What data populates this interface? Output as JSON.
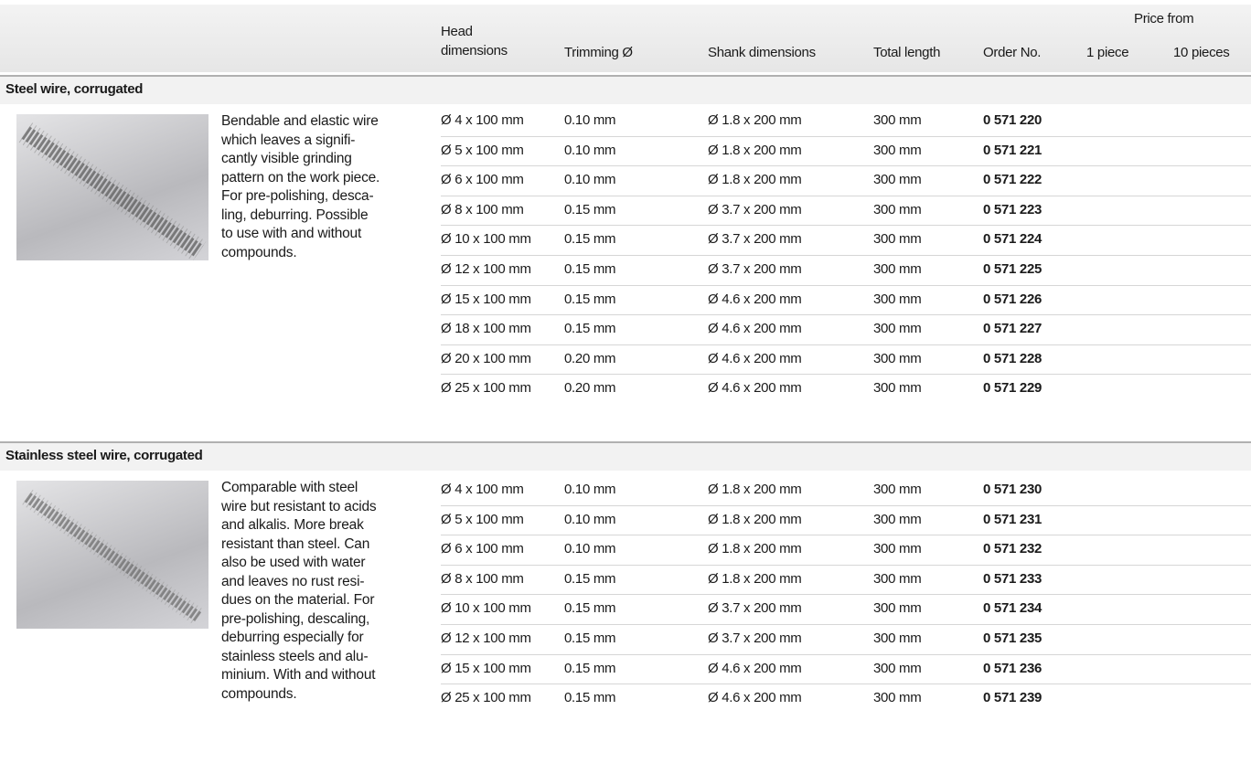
{
  "header": {
    "columns": [
      "Head dimensions",
      "Trimming Ø",
      "Shank dimensions",
      "Total length",
      "Order No."
    ],
    "price_from": "Price from",
    "price_columns": [
      "1 piece",
      "10 pieces"
    ]
  },
  "sections": [
    {
      "title": "Steel wire, corrugated",
      "description": "Bendable and elastic wire\nwhich leaves a signifi-\ncantly visible grinding\npattern on the work piece.\nFor pre-polishing, desca-\nling, deburring. Possible\nto use with and without\ncompounds.",
      "rows": [
        [
          "Ø 4 x 100 mm",
          "0.10 mm",
          "Ø 1.8 x 200 mm",
          "300 mm",
          "0 571 220"
        ],
        [
          "Ø 5 x 100 mm",
          "0.10 mm",
          "Ø 1.8 x 200 mm",
          "300 mm",
          "0 571 221"
        ],
        [
          "Ø 6 x 100 mm",
          "0.10 mm",
          "Ø 1.8 x 200 mm",
          "300 mm",
          "0 571 222"
        ],
        [
          "Ø 8 x 100 mm",
          "0.15 mm",
          "Ø 3.7 x 200 mm",
          "300 mm",
          "0 571 223"
        ],
        [
          "Ø 10 x 100 mm",
          "0.15 mm",
          "Ø 3.7 x 200 mm",
          "300 mm",
          "0 571 224"
        ],
        [
          "Ø 12 x 100 mm",
          "0.15 mm",
          "Ø 3.7 x 200 mm",
          "300 mm",
          "0 571 225"
        ],
        [
          "Ø 15 x 100 mm",
          "0.15 mm",
          "Ø 4.6 x 200 mm",
          "300 mm",
          "0 571 226"
        ],
        [
          "Ø 18 x 100 mm",
          "0.15 mm",
          "Ø 4.6 x 200 mm",
          "300 mm",
          "0 571 227"
        ],
        [
          "Ø 20 x 100 mm",
          "0.20 mm",
          "Ø 4.6 x 200 mm",
          "300 mm",
          "0 571 228"
        ],
        [
          "Ø 25 x 100 mm",
          "0.20 mm",
          "Ø 4.6 x 200 mm",
          "300 mm",
          "0 571 229"
        ]
      ]
    },
    {
      "title": "Stainless steel wire, corrugated",
      "description": "Comparable with steel\nwire but resistant to acids\nand alkalis. More break\nresistant than steel. Can\nalso be used with water\nand leaves no rust resi-\ndues on the material. For\npre-polishing, descaling,\ndeburring especially for\nstainless steels and alu-\nminium. With and without\ncompounds.",
      "rows": [
        [
          "Ø 4 x 100 mm",
          "0.10 mm",
          "Ø 1.8 x 200 mm",
          "300 mm",
          "0 571 230"
        ],
        [
          "Ø 5 x 100 mm",
          "0.10 mm",
          "Ø 1.8 x 200 mm",
          "300 mm",
          "0 571 231"
        ],
        [
          "Ø 6 x 100 mm",
          "0.10 mm",
          "Ø 1.8 x 200 mm",
          "300 mm",
          "0 571 232"
        ],
        [
          "Ø 8 x 100 mm",
          "0.15 mm",
          "Ø 1.8 x 200 mm",
          "300 mm",
          "0 571 233"
        ],
        [
          "Ø 10 x 100 mm",
          "0.15 mm",
          "Ø 3.7 x 200 mm",
          "300 mm",
          "0 571 234"
        ],
        [
          "Ø 12 x 100 mm",
          "0.15 mm",
          "Ø 3.7 x 200 mm",
          "300 mm",
          "0 571 235"
        ],
        [
          "Ø 15 x 100 mm",
          "0.15 mm",
          "Ø 4.6 x 200 mm",
          "300 mm",
          "0 571 236"
        ],
        [
          "Ø 25 x 100 mm",
          "0.15 mm",
          "Ø 4.6 x 200 mm",
          "300 mm",
          "0 571 239"
        ]
      ]
    }
  ]
}
